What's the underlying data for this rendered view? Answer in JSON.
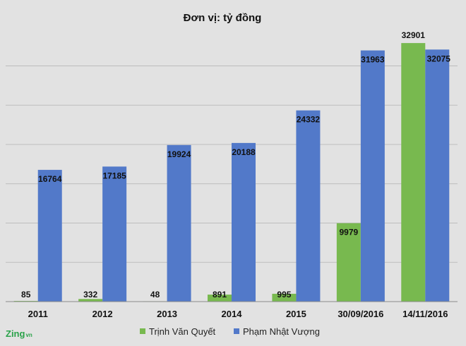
{
  "brand": {
    "name": "Zing",
    "suffix": "vn"
  },
  "colors": {
    "background": "#e2e2e2",
    "grid": "#bdbdbd",
    "axis": "#8a8a8a",
    "green": "#78b94f",
    "blue": "#5279c9",
    "brand": "#2aa24a"
  },
  "chart_data": {
    "type": "bar",
    "title": "Đơn vị: tỷ đồng",
    "xlabel": "",
    "ylabel": "",
    "ylim": [
      0,
      33000
    ],
    "grid": true,
    "legend_position": "bottom",
    "categories": [
      "2011",
      "2012",
      "2013",
      "2014",
      "2015",
      "30/09/2016",
      "14/11/2016"
    ],
    "series": [
      {
        "name": "Trịnh Văn Quyết",
        "color": "#78b94f",
        "values": [
          85,
          332,
          48,
          891,
          995,
          9979,
          32901
        ]
      },
      {
        "name": "Phạm Nhật Vượng",
        "color": "#5279c9",
        "values": [
          16764,
          17185,
          19924,
          20188,
          24332,
          31963,
          32075
        ]
      }
    ]
  }
}
